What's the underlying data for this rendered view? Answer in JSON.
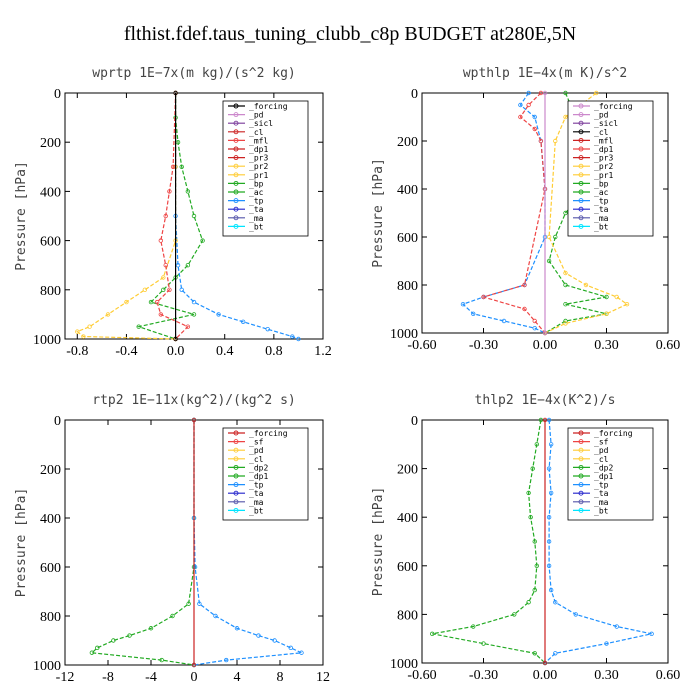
{
  "figure_title": "flthist.fdef.taus_tuning_clubb_c8p  BUDGET at280E,5N",
  "chart_data": [
    {
      "type": "line",
      "title": "wprtp  1E−7x(m kg)/(s^2 kg)",
      "ylabel": "Pressure [hPa]",
      "xlim": [
        -0.9,
        1.2
      ],
      "ylim": [
        1000,
        0
      ],
      "xticks": [
        "-0.8",
        "-0.4",
        "0.0",
        "0.4",
        "0.8",
        "1.2"
      ],
      "xtick_values": [
        -0.8,
        -0.4,
        0.0,
        0.4,
        0.8,
        1.2
      ],
      "yticks": [
        "0",
        "200",
        "400",
        "600",
        "800",
        "1000"
      ],
      "ytick_values": [
        0,
        200,
        400,
        600,
        800,
        1000
      ],
      "legend_position": "top-right",
      "legend": [
        "_forcing",
        "_pd",
        "_sicl",
        "_cl",
        "_mfl",
        "_dp1",
        "_pr3",
        "_pr2",
        "_pr1",
        "_bp",
        "_ac",
        "_tp",
        "_ta",
        "_ma",
        "_bt"
      ],
      "legend_colors": [
        "#000000",
        "#cc88cc",
        "#7a3a9a",
        "#cc2222",
        "#ee4444",
        "#cc2222",
        "#cc2222",
        "#ffcc33",
        "#ffcc33",
        "#22aa22",
        "#22aa22",
        "#1e90ff",
        "#2222cc",
        "#5555aa",
        "#00e5ff"
      ],
      "series": [
        {
          "name": "_bp",
          "color": "#22aa22",
          "levels": [
            0,
            100,
            200,
            300,
            400,
            500,
            600,
            700,
            750,
            800,
            850,
            900,
            950,
            1000
          ],
          "values": [
            0.0,
            0.0,
            0.02,
            0.05,
            0.1,
            0.15,
            0.22,
            0.1,
            0.0,
            -0.1,
            -0.2,
            0.15,
            -0.3,
            0.0
          ]
        },
        {
          "name": "_tp",
          "color": "#1e90ff",
          "levels": [
            0,
            300,
            500,
            700,
            800,
            850,
            900,
            930,
            960,
            990,
            1000
          ],
          "values": [
            0.0,
            0.0,
            0.0,
            0.02,
            0.05,
            0.15,
            0.35,
            0.55,
            0.75,
            0.95,
            1.0
          ]
        },
        {
          "name": "_pr1",
          "color": "#ffcc33",
          "levels": [
            0,
            300,
            600,
            750,
            800,
            850,
            900,
            950,
            970,
            990,
            1000
          ],
          "values": [
            0.0,
            0.0,
            0.0,
            -0.1,
            -0.25,
            -0.4,
            -0.55,
            -0.7,
            -0.8,
            -0.75,
            0.0
          ]
        },
        {
          "name": "_mfl",
          "color": "#ee4444",
          "levels": [
            0,
            300,
            400,
            500,
            600,
            700,
            800,
            850,
            900,
            950,
            1000
          ],
          "values": [
            0.0,
            -0.02,
            -0.05,
            -0.08,
            -0.12,
            -0.08,
            -0.05,
            -0.15,
            -0.12,
            0.1,
            0.0
          ]
        },
        {
          "name": "_forcing",
          "color": "#000000",
          "levels": [
            0,
            1000
          ],
          "values": [
            0.0,
            0.0
          ]
        }
      ]
    },
    {
      "type": "line",
      "title": "wpthlp  1E−4x(m K)/s^2",
      "ylabel": "Pressure [hPa]",
      "xlim": [
        -0.6,
        0.6
      ],
      "ylim": [
        1000,
        0
      ],
      "xticks": [
        "-0.60",
        "-0.30",
        "0.00",
        "0.30",
        "0.60"
      ],
      "xtick_values": [
        -0.6,
        -0.3,
        0.0,
        0.3,
        0.6
      ],
      "yticks": [
        "0",
        "200",
        "400",
        "600",
        "800",
        "1000"
      ],
      "ytick_values": [
        0,
        200,
        400,
        600,
        800,
        1000
      ],
      "legend_position": "top-right",
      "legend": [
        "_forcing",
        "_pd",
        "_sicl",
        "_cl",
        "_mfl",
        "_dp1",
        "_pr3",
        "_pr2",
        "_pr1",
        "_bp",
        "_ac",
        "_tp",
        "_ta",
        "_ma",
        "_bt"
      ],
      "legend_colors": [
        "#cc88cc",
        "#cc88cc",
        "#7a3a9a",
        "#000000",
        "#cc2222",
        "#ee4444",
        "#cc2222",
        "#ffcc33",
        "#ffcc33",
        "#22aa22",
        "#22aa22",
        "#1e90ff",
        "#2222cc",
        "#5555aa",
        "#00e5ff"
      ],
      "series": [
        {
          "name": "_tp",
          "color": "#1e90ff",
          "levels": [
            0,
            50,
            100,
            200,
            400,
            600,
            800,
            850,
            880,
            920,
            950,
            980,
            1000
          ],
          "values": [
            -0.08,
            -0.12,
            -0.05,
            -0.02,
            0.0,
            0.0,
            -0.1,
            -0.3,
            -0.4,
            -0.35,
            -0.2,
            -0.05,
            0.0
          ]
        },
        {
          "name": "_bp",
          "color": "#22aa22",
          "levels": [
            0,
            100,
            200,
            300,
            400,
            500,
            600,
            700,
            800,
            850,
            880,
            920,
            950,
            1000
          ],
          "values": [
            0.1,
            0.15,
            0.2,
            0.28,
            0.2,
            0.1,
            0.05,
            0.02,
            0.1,
            0.3,
            0.1,
            0.3,
            0.1,
            0.0
          ]
        },
        {
          "name": "_pr1",
          "color": "#ffcc33",
          "levels": [
            0,
            100,
            200,
            600,
            750,
            800,
            850,
            880,
            920,
            960,
            1000
          ],
          "values": [
            0.25,
            0.1,
            0.05,
            0.02,
            0.1,
            0.2,
            0.35,
            0.4,
            0.3,
            0.1,
            0.0
          ]
        },
        {
          "name": "_mfl",
          "color": "#ee4444",
          "levels": [
            0,
            50,
            100,
            150,
            200,
            400,
            800,
            850,
            900,
            950,
            1000
          ],
          "values": [
            -0.02,
            -0.08,
            -0.12,
            -0.05,
            -0.02,
            0.0,
            -0.1,
            -0.3,
            -0.1,
            -0.05,
            0.0
          ]
        },
        {
          "name": "_forcing",
          "color": "#cc88cc",
          "levels": [
            0,
            1000
          ],
          "values": [
            0.0,
            0.0
          ]
        }
      ]
    },
    {
      "type": "line",
      "title": "rtp2  1E−11x(kg^2)/(kg^2 s)",
      "ylabel": "Pressure [hPa]",
      "xlim": [
        -12,
        12
      ],
      "ylim": [
        1000,
        0
      ],
      "xticks": [
        "-12",
        "-8",
        "-4",
        "0",
        "4",
        "8",
        "12"
      ],
      "xtick_values": [
        -12,
        -8,
        -4,
        0,
        4,
        8,
        12
      ],
      "yticks": [
        "0",
        "200",
        "400",
        "600",
        "800",
        "1000"
      ],
      "ytick_values": [
        0,
        200,
        400,
        600,
        800,
        1000
      ],
      "legend_position": "top-right",
      "legend": [
        "_forcing",
        "_sf",
        "_pd",
        "_cl",
        "_dp2",
        "_dp1",
        "_tp",
        "_ta",
        "_ma",
        "_bt"
      ],
      "legend_colors": [
        "#cc2222",
        "#ee4444",
        "#ffcc33",
        "#ffcc33",
        "#22aa22",
        "#22aa22",
        "#1e90ff",
        "#2222cc",
        "#5555aa",
        "#00e5ff"
      ],
      "series": [
        {
          "name": "_dp1",
          "color": "#22aa22",
          "levels": [
            0,
            400,
            600,
            750,
            800,
            850,
            880,
            900,
            930,
            950,
            980,
            1000
          ],
          "values": [
            0.0,
            0.0,
            0.0,
            -0.5,
            -2.0,
            -4.0,
            -6.0,
            -7.5,
            -9.0,
            -9.5,
            -3.0,
            0.0
          ]
        },
        {
          "name": "_tp",
          "color": "#1e90ff",
          "levels": [
            0,
            400,
            600,
            750,
            800,
            850,
            880,
            900,
            930,
            950,
            980,
            1000
          ],
          "values": [
            0.0,
            0.0,
            0.1,
            0.5,
            2.0,
            4.0,
            6.0,
            7.5,
            9.0,
            10.0,
            3.0,
            0.0
          ]
        },
        {
          "name": "_forcing",
          "color": "#cc2222",
          "levels": [
            0,
            1000
          ],
          "values": [
            0.0,
            0.0
          ]
        }
      ]
    },
    {
      "type": "line",
      "title": "thlp2  1E−4x(K^2)/s",
      "ylabel": "Pressure [hPa]",
      "xlim": [
        -0.6,
        0.6
      ],
      "ylim": [
        1000,
        0
      ],
      "xticks": [
        "-0.60",
        "-0.30",
        "0.00",
        "0.30",
        "0.60"
      ],
      "xtick_values": [
        -0.6,
        -0.3,
        0.0,
        0.3,
        0.6
      ],
      "yticks": [
        "0",
        "200",
        "400",
        "600",
        "800",
        "1000"
      ],
      "ytick_values": [
        0,
        200,
        400,
        600,
        800,
        1000
      ],
      "legend_position": "top-right",
      "legend": [
        "_forcing",
        "_sf",
        "_pd",
        "_cl",
        "_dp2",
        "_dp1",
        "_tp",
        "_ta",
        "_ma",
        "_bt"
      ],
      "legend_colors": [
        "#cc2222",
        "#ee4444",
        "#ffcc33",
        "#ffcc33",
        "#22aa22",
        "#22aa22",
        "#1e90ff",
        "#2222cc",
        "#5555aa",
        "#00e5ff"
      ],
      "series": [
        {
          "name": "_dp1",
          "color": "#22aa22",
          "levels": [
            0,
            100,
            200,
            300,
            400,
            500,
            600,
            700,
            750,
            800,
            850,
            880,
            920,
            960,
            1000
          ],
          "values": [
            -0.02,
            -0.04,
            -0.06,
            -0.08,
            -0.07,
            -0.05,
            -0.04,
            -0.05,
            -0.08,
            -0.15,
            -0.35,
            -0.55,
            -0.3,
            -0.05,
            0.0
          ]
        },
        {
          "name": "_tp",
          "color": "#1e90ff",
          "levels": [
            0,
            100,
            200,
            300,
            400,
            500,
            600,
            700,
            750,
            800,
            850,
            880,
            920,
            960,
            1000
          ],
          "values": [
            0.02,
            0.03,
            0.02,
            0.03,
            0.02,
            0.02,
            0.02,
            0.03,
            0.05,
            0.15,
            0.35,
            0.52,
            0.3,
            0.05,
            0.0
          ]
        },
        {
          "name": "_forcing",
          "color": "#cc2222",
          "levels": [
            0,
            1000
          ],
          "values": [
            0.0,
            0.0
          ]
        }
      ]
    }
  ]
}
